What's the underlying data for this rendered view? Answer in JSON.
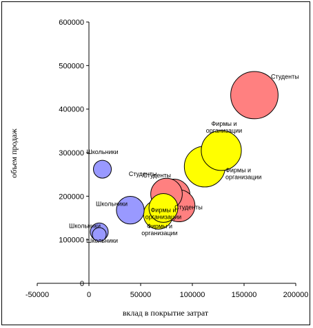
{
  "chart_data": {
    "type": "bubble",
    "title": "",
    "xlabel": "вклад в покрытие затрат",
    "ylabel": "объем продаж",
    "xlim": [
      -50000,
      200000
    ],
    "ylim": [
      0,
      600000
    ],
    "x_ticks": [
      -50000,
      0,
      50000,
      100000,
      150000,
      200000
    ],
    "x_tick_labels": [
      "-50000",
      "0",
      "50000",
      "100000",
      "150000",
      "200000"
    ],
    "y_ticks": [
      0,
      100000,
      200000,
      300000,
      400000,
      500000,
      600000
    ],
    "y_tick_labels": [
      "0",
      "100000",
      "200000",
      "300000",
      "400000",
      "500000",
      "600000"
    ],
    "grid": false,
    "legend": "none",
    "colors": {
      "Школьники": "#9999ff",
      "Студенты": "#ff8080",
      "Фирмы и организации": "#ffff00"
    },
    "points": [
      {
        "group": "Школьники",
        "x": 13000,
        "y": 262000,
        "size": 1,
        "label": "Школьники"
      },
      {
        "group": "Школьники",
        "x": 40000,
        "y": 168000,
        "size": 2.4,
        "label": "Школьники"
      },
      {
        "group": "Школьники",
        "x": 10000,
        "y": 118000,
        "size": 1,
        "label": "Школьники"
      },
      {
        "group": "Школьники",
        "x": 10000,
        "y": 112000,
        "size": 0.6,
        "label": "Школьники"
      },
      {
        "group": "Студенты",
        "x": 160000,
        "y": 432000,
        "size": 7,
        "label": "Студенты"
      },
      {
        "group": "Студенты",
        "x": 82000,
        "y": 202000,
        "size": 3.3,
        "label": "Студенты"
      },
      {
        "group": "Студенты",
        "x": 75000,
        "y": 205000,
        "size": 3.1,
        "label": "Студенты"
      },
      {
        "group": "Студенты",
        "x": 87000,
        "y": 178000,
        "size": 3.2,
        "label": "Студенты"
      },
      {
        "group": "Фирмы и организации",
        "x": 128000,
        "y": 305000,
        "size": 5,
        "label": "Фирмы и организации"
      },
      {
        "group": "Фирмы и организации",
        "x": 112000,
        "y": 268000,
        "size": 5.2,
        "label": "Фирмы и организации"
      },
      {
        "group": "Фирмы и организации",
        "x": 67000,
        "y": 158000,
        "size": 2.7,
        "label": "Фирмы и организации"
      },
      {
        "group": "Фирмы и организации",
        "x": 72000,
        "y": 173000,
        "size": 2.6,
        "label": "Фирмы и организации"
      }
    ]
  }
}
